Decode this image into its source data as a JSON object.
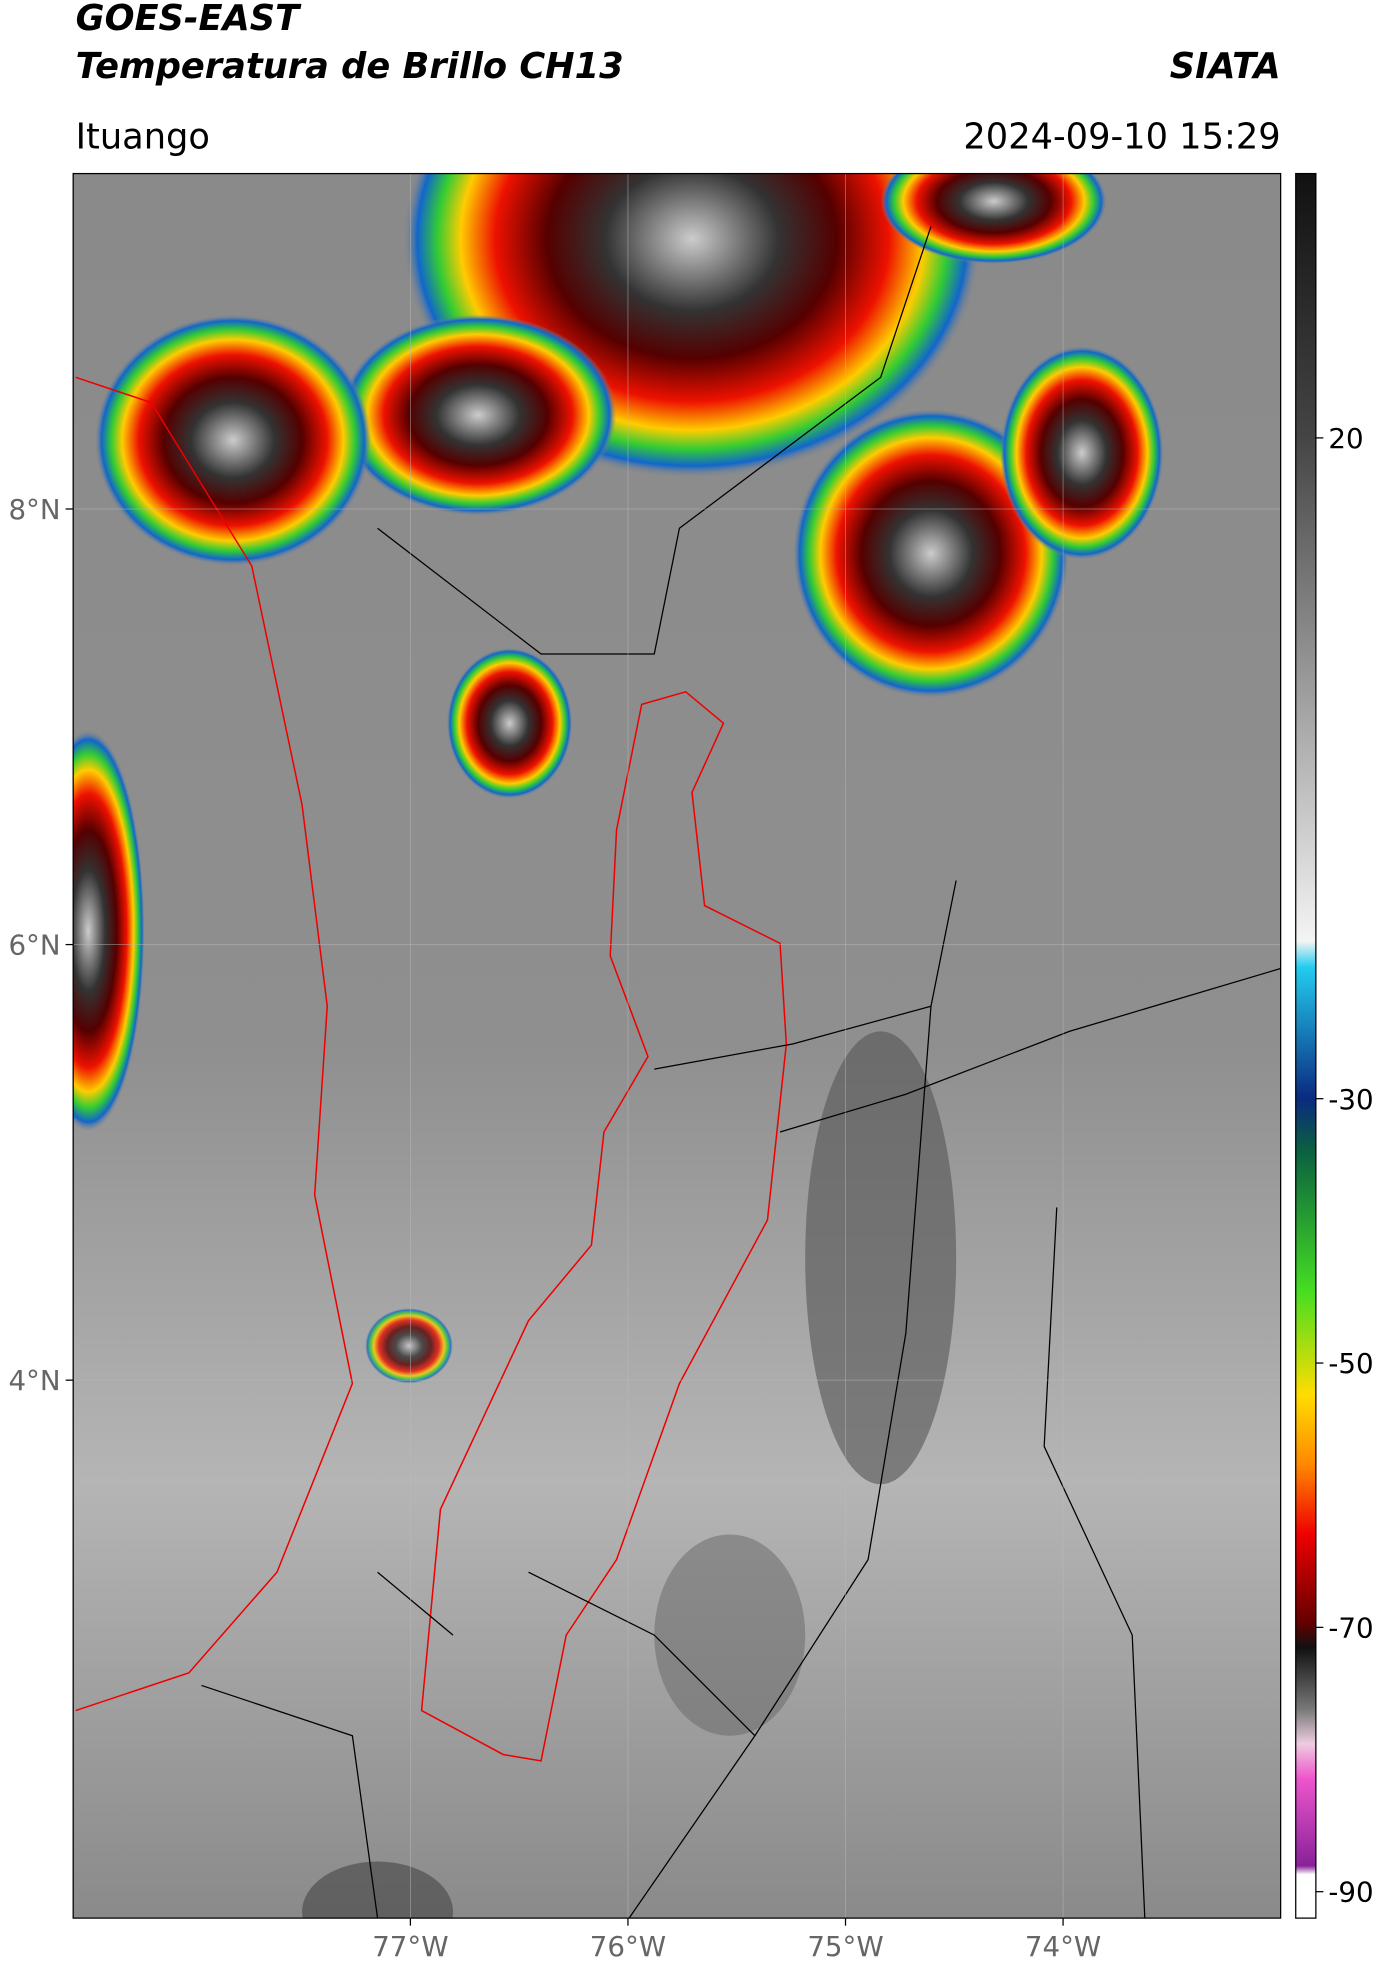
{
  "header": {
    "satellite": "GOES-EAST",
    "product": "Temperatura de Brillo CH13",
    "organization": "SIATA",
    "region": "Ituango",
    "datetime": "2024-09-10 15:29"
  },
  "map": {
    "xlim": [
      -78.55,
      -73.0
    ],
    "ylim": [
      1.53,
      9.54
    ],
    "xticks": [
      {
        "value": -77,
        "label": "77°W"
      },
      {
        "value": -76,
        "label": "76°W"
      },
      {
        "value": -75,
        "label": "75°W"
      },
      {
        "value": -74,
        "label": "74°W"
      }
    ],
    "yticks": [
      {
        "value": 8,
        "label": "8°N"
      },
      {
        "value": 6,
        "label": "6°N"
      },
      {
        "value": 4,
        "label": "4°N"
      }
    ]
  },
  "colorbar": {
    "lim": [
      -92,
      40
    ],
    "ticks": [
      20,
      -30,
      -50,
      -70,
      -90
    ]
  }
}
